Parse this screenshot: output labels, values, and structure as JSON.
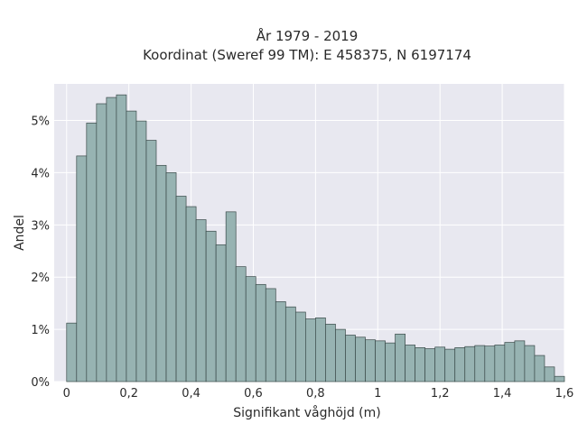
{
  "chart_data": {
    "type": "bar",
    "title": "År 1979 - 2019",
    "subtitle": "Koordinat (Sweref 99 TM): E 458375, N 6197174",
    "xlabel": "Signifikant våghöjd (m)",
    "ylabel": "Andel",
    "xlim": [
      -0.04,
      1.6
    ],
    "ylim": [
      0,
      5.7
    ],
    "x_ticks": [
      0,
      0.2,
      0.4,
      0.6,
      0.8,
      1.0,
      1.2,
      1.4,
      1.6
    ],
    "x_tick_labels": [
      "0",
      "0,2",
      "0,4",
      "0,6",
      "0,8",
      "1",
      "1,2",
      "1,4",
      "1,6"
    ],
    "y_ticks": [
      0,
      1,
      2,
      3,
      4,
      5
    ],
    "y_tick_labels": [
      "0%",
      "1%",
      "2%",
      "3%",
      "4%",
      "5%"
    ],
    "grid": true,
    "bin_width": 0.032,
    "bin_start": 0.0,
    "values": [
      1.12,
      4.32,
      4.95,
      5.32,
      5.44,
      5.49,
      5.18,
      4.99,
      4.62,
      4.14,
      4.0,
      3.55,
      3.35,
      3.1,
      2.88,
      2.62,
      3.25,
      2.2,
      2.01,
      1.86,
      1.78,
      1.53,
      1.43,
      1.33,
      1.2,
      1.22,
      1.1,
      1.0,
      0.89,
      0.85,
      0.8,
      0.78,
      0.74,
      0.91,
      0.7,
      0.65,
      0.63,
      0.66,
      0.62,
      0.65,
      0.67,
      0.69,
      0.68,
      0.7,
      0.75,
      0.78,
      0.69,
      0.5,
      0.28,
      0.1
    ],
    "colors": {
      "bar_fill": "#97b3b2",
      "bar_edge": "#3a4a49",
      "plot_background": "#e8e8f0",
      "grid": "#ffffff"
    }
  }
}
